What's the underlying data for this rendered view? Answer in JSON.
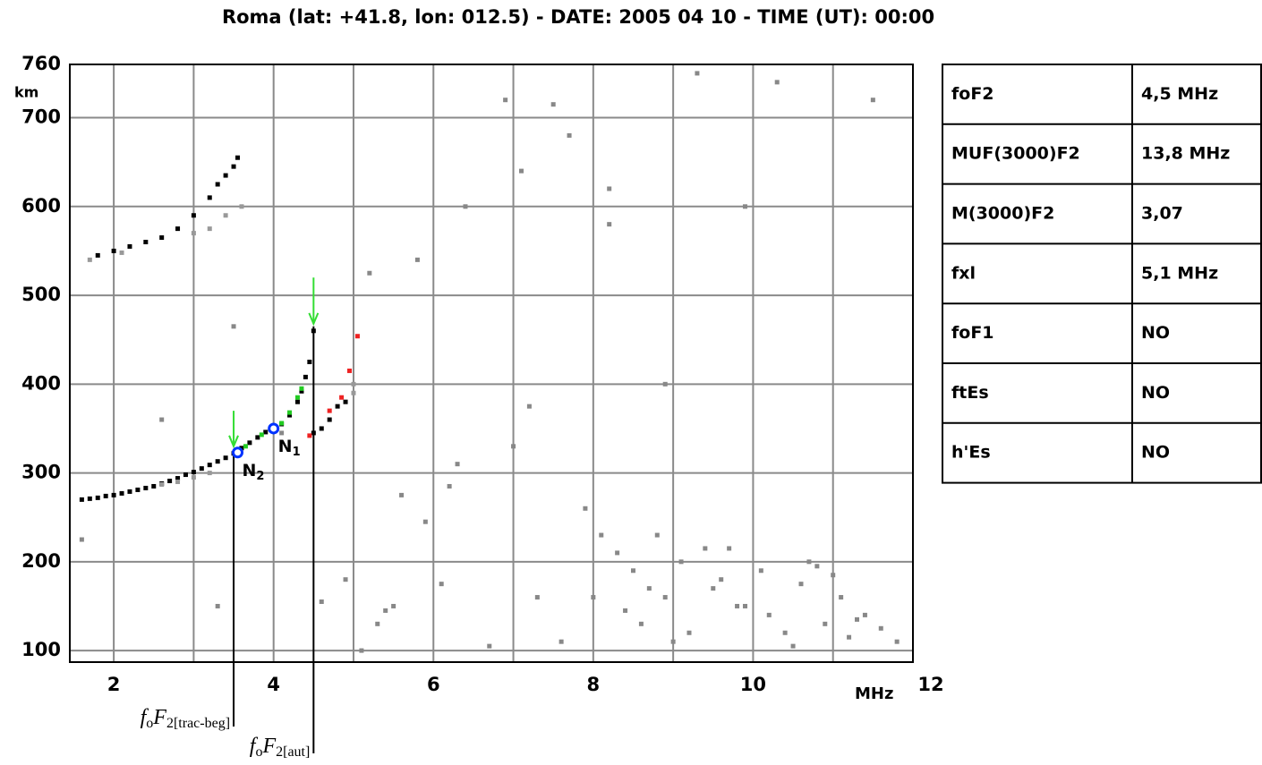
{
  "chart_data": {
    "type": "scatter",
    "title": "Roma (lat: +41.8, lon: 012.5) - DATE: 2005 04 10 - TIME (UT): 00:00",
    "x_label": "MHz",
    "y_label": "km",
    "xlim": [
      1.45,
      12
    ],
    "ylim": [
      87,
      760
    ],
    "xticks": [
      2,
      4,
      6,
      8,
      10,
      12
    ],
    "yticks": [
      100,
      200,
      300,
      400,
      500,
      600,
      700,
      760
    ],
    "xgrid": [
      2,
      3,
      4,
      5,
      6,
      7,
      8,
      9,
      10,
      11
    ],
    "grid": true,
    "series": [
      {
        "color": "#000000",
        "x": [
          1.6,
          1.7,
          1.8,
          1.9,
          2.0,
          2.1,
          2.2,
          2.3,
          2.4,
          2.5,
          2.6,
          2.7,
          2.8,
          2.9,
          3.0,
          3.1,
          3.2,
          3.3,
          3.4,
          3.5,
          3.6,
          3.7,
          3.8,
          3.9,
          4.1,
          4.2,
          4.3,
          4.35,
          4.4,
          4.45,
          4.5,
          4.5,
          4.6,
          4.7,
          4.8,
          4.9,
          1.8,
          2.0,
          2.2,
          2.4,
          2.6,
          2.8,
          3.0,
          3.2,
          3.3,
          3.4,
          3.5,
          3.55
        ],
        "values": [
          270,
          271,
          272,
          274,
          275,
          277,
          279,
          281,
          283,
          285,
          288,
          291,
          294,
          298,
          301,
          305,
          309,
          313,
          317,
          322,
          328,
          334,
          340,
          346,
          355,
          365,
          380,
          392,
          408,
          425,
          460,
          345,
          350,
          360,
          375,
          380,
          545,
          550,
          555,
          560,
          565,
          575,
          590,
          610,
          625,
          635,
          645,
          655
        ]
      },
      {
        "color": "#999999",
        "x": [
          2.6,
          2.8,
          3.0,
          3.2,
          5.0,
          5.0,
          3.0,
          3.2,
          3.4,
          3.6,
          1.7,
          2.1
        ],
        "values": [
          287,
          290,
          295,
          300,
          400,
          390,
          570,
          575,
          590,
          600,
          540,
          548
        ]
      },
      {
        "color": "#22cc22",
        "x": [
          3.65,
          3.85,
          4.1,
          4.2,
          4.3,
          4.35
        ],
        "values": [
          330,
          343,
          356,
          368,
          385,
          395
        ]
      },
      {
        "color": "#ee2222",
        "x": [
          4.45,
          4.7,
          4.85,
          4.95,
          5.05
        ],
        "values": [
          342,
          370,
          385,
          415,
          454
        ]
      },
      {
        "color": "#888888",
        "x": [
          5.2,
          5.6,
          6.9,
          7.7,
          8.2,
          7.5,
          6.4,
          5.8,
          7.1,
          8.9,
          9.3,
          10.3,
          11.5,
          8.1,
          8.3,
          8.5,
          8.7,
          8.9,
          9.1,
          9.4,
          9.6,
          9.8,
          10.2,
          10.4,
          10.6,
          10.8,
          11.1,
          11.3,
          11.6,
          11.8,
          8.0,
          8.4,
          8.6,
          9.0,
          9.2,
          9.5,
          9.9,
          10.1,
          10.5,
          10.9,
          11.0,
          11.4,
          7.3,
          7.6,
          6.7,
          6.1,
          5.5,
          5.3,
          5.1,
          4.9,
          6.2,
          5.9,
          7.9,
          8.8,
          9.7,
          10.7,
          11.2,
          3.5,
          2.6,
          1.6,
          3.3,
          4.1,
          6.3,
          7.2,
          7.0,
          4.6,
          5.4,
          9.9,
          8.2
        ],
        "values": [
          525,
          275,
          720,
          680,
          580,
          715,
          600,
          540,
          640,
          400,
          750,
          740,
          720,
          230,
          210,
          190,
          170,
          160,
          200,
          215,
          180,
          150,
          140,
          120,
          175,
          195,
          160,
          135,
          125,
          110,
          160,
          145,
          130,
          110,
          120,
          170,
          150,
          190,
          105,
          130,
          185,
          140,
          160,
          110,
          105,
          175,
          150,
          130,
          100,
          180,
          285,
          245,
          260,
          230,
          215,
          200,
          115,
          465,
          360,
          225,
          150,
          345,
          310,
          375,
          330,
          155,
          145,
          600,
          620
        ]
      }
    ],
    "markers": [
      {
        "label": "N",
        "sub": "1",
        "x": 4.0,
        "y": 350
      },
      {
        "label": "N",
        "sub": "2",
        "x": 3.55,
        "y": 323
      }
    ],
    "arrows": [
      {
        "x": 3.5,
        "from": 370,
        "to": 330
      },
      {
        "x": 4.5,
        "from": 520,
        "to": 468
      }
    ],
    "cursors": [
      {
        "x": 3.5,
        "from": 325,
        "f": "f",
        "o": "o",
        "F": "F",
        "label": "2[trac-beg]"
      },
      {
        "x": 4.5,
        "from": 465,
        "f": "f",
        "o": "o",
        "F": "F",
        "label": "2[aut]"
      }
    ]
  },
  "table": {
    "rows": [
      [
        "foF2",
        "4,5 MHz"
      ],
      [
        "MUF(3000)F2",
        "13,8 MHz"
      ],
      [
        "M(3000)F2",
        "3,07"
      ],
      [
        "fxl",
        "5,1 MHz"
      ],
      [
        "foF1",
        "NO"
      ],
      [
        "ftEs",
        "NO"
      ],
      [
        "h'Es",
        "NO"
      ]
    ]
  }
}
